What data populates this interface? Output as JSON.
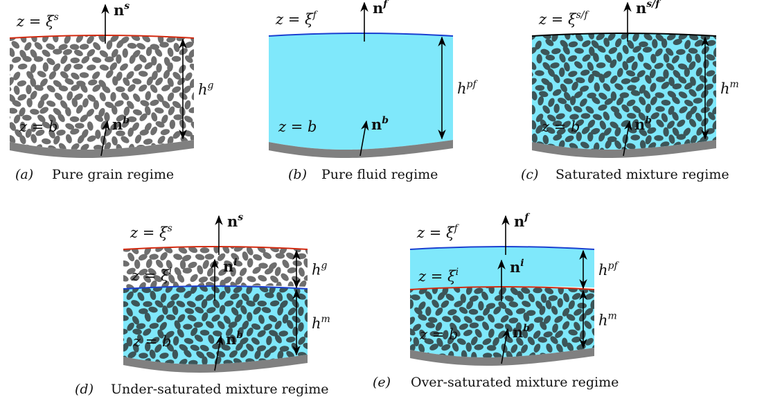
{
  "panels": [
    {
      "tag": "(a)",
      "caption": "Pure grain regime",
      "top_surface": {
        "main": "z = ξ",
        "sup": "s"
      },
      "top_normal": {
        "main": "n",
        "sup": "s"
      },
      "height_top": {
        "main": "h",
        "sup": "g"
      },
      "bed_surface": {
        "main": "z = b"
      },
      "bed_normal": {
        "main": "n",
        "sup": "b"
      }
    },
    {
      "tag": "(b)",
      "caption": "Pure fluid regime",
      "top_surface": {
        "main": "z = ξ",
        "sup": "f"
      },
      "top_normal": {
        "main": "n",
        "sup": "f"
      },
      "height_top": {
        "main": "h",
        "sup": "pf"
      },
      "bed_surface": {
        "main": "z = b"
      },
      "bed_normal": {
        "main": "n",
        "sup": "b"
      }
    },
    {
      "tag": "(c)",
      "caption": "Saturated mixture regime",
      "top_surface": {
        "main": "z = ξ",
        "sup": "s/f"
      },
      "top_normal": {
        "main": "n",
        "sup": "s/f"
      },
      "height_top": {
        "main": "h",
        "sup": "m"
      },
      "bed_surface": {
        "main": "z = b"
      },
      "bed_normal": {
        "main": "n",
        "sup": "b"
      }
    },
    {
      "tag": "(d)",
      "caption": "Under-saturated mixture regime",
      "top_surface": {
        "main": "z = ξ",
        "sup": "s"
      },
      "top_normal": {
        "main": "n",
        "sup": "s"
      },
      "height_top": {
        "main": "h",
        "sup": "g"
      },
      "interface_surface": {
        "main": "z = ξ",
        "sup": "i"
      },
      "interface_normal": {
        "main": "n",
        "sup": "i"
      },
      "height_bottom": {
        "main": "h",
        "sup": "m"
      },
      "bed_surface": {
        "main": "z = b"
      },
      "bed_normal": {
        "main": "n",
        "sup": "b"
      }
    },
    {
      "tag": "(e)",
      "caption": "Over-saturated mixture regime",
      "top_surface": {
        "main": "z = ξ",
        "sup": "f"
      },
      "top_normal": {
        "main": "n",
        "sup": "f"
      },
      "height_top": {
        "main": "h",
        "sup": "pf"
      },
      "interface_surface": {
        "main": "z = ξ",
        "sup": "i"
      },
      "interface_normal": {
        "main": "n",
        "sup": "i"
      },
      "height_bottom": {
        "main": "h",
        "sup": "m"
      },
      "bed_surface": {
        "main": "z = b"
      },
      "bed_normal": {
        "main": "n",
        "sup": "b"
      }
    }
  ]
}
